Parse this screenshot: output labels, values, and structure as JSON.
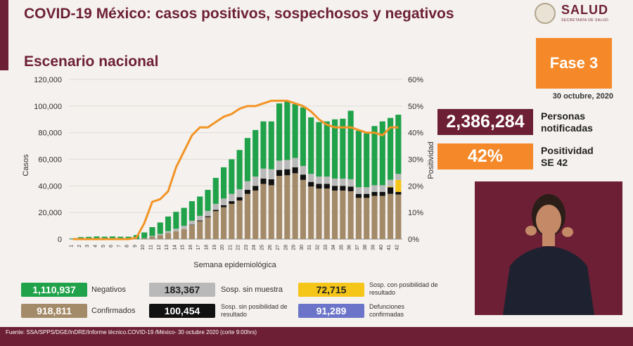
{
  "header": {
    "title": "COVID-19 México: casos positivos, sospechosos y negativos",
    "subtitle": "Escenario nacional",
    "logo_text": "SALUD",
    "logo_sub": "SECRETARÍA DE SALUD"
  },
  "fase": {
    "label": "Fase 3",
    "date": "30 octubre, 2020"
  },
  "stats": {
    "personas_value": "2,386,284",
    "personas_label": "Personas notificadas",
    "positividad_value": "42%",
    "positividad_label": "Positividad SE 42"
  },
  "legend": {
    "negativos_value": "1,110,937",
    "negativos_label": "Negativos",
    "confirmados_value": "918,811",
    "confirmados_label": "Confirmados",
    "sin_muestra_value": "183,367",
    "sin_muestra_label": "Sosp. sin muestra",
    "sin_posibilidad_value": "100,454",
    "sin_posibilidad_label": "Sosp. sin posibilidad de resultado",
    "con_posibilidad_value": "72,715",
    "con_posibilidad_label": "Sosp. con posibilidad de resultado",
    "defunciones_value": "91,289",
    "defunciones_label": "Defunciones confirmadas"
  },
  "footer": {
    "source": "Fuente: SSA/SPPS/DGE/InDRE/Informe técnico.COVID-19 /México- 30 octubre 2020 (corte 9:00hrs)"
  },
  "colors": {
    "negativos": "#1fa24a",
    "confirmados": "#a38a68",
    "sin_muestra": "#b9b9b9",
    "sin_posibilidad": "#111111",
    "con_posibilidad": "#f5c518",
    "defunciones": "#6b74c9",
    "positividad": "#f29425",
    "brand": "#6d1f35",
    "accent": "#f5892a"
  },
  "chart_data": {
    "type": "bar",
    "xlabel": "Semana epidemiológica",
    "ylabel": "Casos",
    "y2label": "Positividad",
    "ylim": [
      0,
      120000
    ],
    "y2lim": [
      0,
      60
    ],
    "yticks": [
      "0",
      "20,000",
      "40,000",
      "60,000",
      "80,000",
      "100,000",
      "120,000"
    ],
    "y2ticks": [
      "0%",
      "10%",
      "20%",
      "30%",
      "40%",
      "50%",
      "60%"
    ],
    "categories": [
      "1",
      "2",
      "3",
      "4",
      "5",
      "6",
      "7",
      "8",
      "9",
      "10",
      "11",
      "12",
      "13",
      "14",
      "15",
      "16",
      "17",
      "18",
      "19",
      "20",
      "21",
      "22",
      "23",
      "24",
      "25",
      "26",
      "27",
      "28",
      "29",
      "30",
      "31",
      "32",
      "33",
      "34",
      "35",
      "36",
      "37",
      "38",
      "39",
      "40",
      "41",
      "42"
    ],
    "series": [
      {
        "key": "confirmados",
        "values": [
          0,
          0,
          0,
          0,
          0,
          0,
          0,
          0,
          100,
          600,
          1900,
          2900,
          4500,
          5800,
          7500,
          10500,
          13500,
          16500,
          21000,
          24000,
          26500,
          29000,
          34000,
          36500,
          41500,
          40500,
          47500,
          48000,
          49500,
          44500,
          39500,
          38000,
          38000,
          36500,
          36500,
          36000,
          31000,
          31000,
          32500,
          32500,
          34000,
          33500
        ]
      },
      {
        "key": "sin_posibilidad",
        "values": [
          0,
          0,
          0,
          0,
          0,
          0,
          0,
          0,
          0,
          0,
          0,
          0,
          0,
          0,
          0,
          300,
          500,
          700,
          1000,
          1500,
          2000,
          2500,
          3000,
          3500,
          4000,
          4500,
          4500,
          4500,
          4500,
          4000,
          3500,
          3500,
          3500,
          3500,
          3500,
          3500,
          3000,
          3000,
          3000,
          3000,
          5000,
          2000
        ]
      },
      {
        "key": "con_posibilidad",
        "values": [
          0,
          0,
          0,
          0,
          0,
          0,
          0,
          0,
          0,
          0,
          0,
          0,
          0,
          0,
          0,
          0,
          0,
          0,
          0,
          0,
          0,
          0,
          0,
          0,
          0,
          0,
          0,
          0,
          0,
          0,
          0,
          0,
          0,
          0,
          0,
          0,
          0,
          0,
          0,
          0,
          600,
          9000
        ]
      },
      {
        "key": "sin_muestra",
        "values": [
          0,
          0,
          0,
          0,
          0,
          0,
          0,
          0,
          0,
          100,
          500,
          1000,
          1500,
          2000,
          2500,
          3000,
          3500,
          4000,
          4500,
          5000,
          5500,
          6000,
          6500,
          7000,
          7500,
          7500,
          7000,
          7000,
          7000,
          6500,
          6000,
          5500,
          5500,
          5500,
          5500,
          5500,
          5000,
          5000,
          5000,
          5000,
          5000,
          4500
        ]
      },
      {
        "key": "negativos",
        "values": [
          500,
          1500,
          1700,
          2000,
          1800,
          2000,
          1800,
          1800,
          2900,
          4300,
          6600,
          8600,
          11000,
          12700,
          13500,
          14700,
          14500,
          15800,
          19500,
          23500,
          26000,
          29500,
          32500,
          35000,
          35500,
          36000,
          43000,
          44500,
          40500,
          44000,
          42500,
          41000,
          41500,
          44500,
          45000,
          51500,
          42500,
          40500,
          44500,
          48000,
          46500,
          44500
        ]
      }
    ],
    "line": {
      "name": "Positividad",
      "unit": "%",
      "values": [
        0,
        0,
        0,
        0,
        0,
        0,
        0,
        0,
        0.5,
        6,
        14,
        15,
        18,
        27,
        33,
        39,
        42,
        42,
        44,
        46,
        47,
        49,
        50,
        50,
        51,
        52,
        52,
        52,
        51,
        50,
        48,
        45,
        43,
        42,
        42,
        42,
        41,
        40,
        40,
        39,
        42,
        42
      ]
    }
  }
}
